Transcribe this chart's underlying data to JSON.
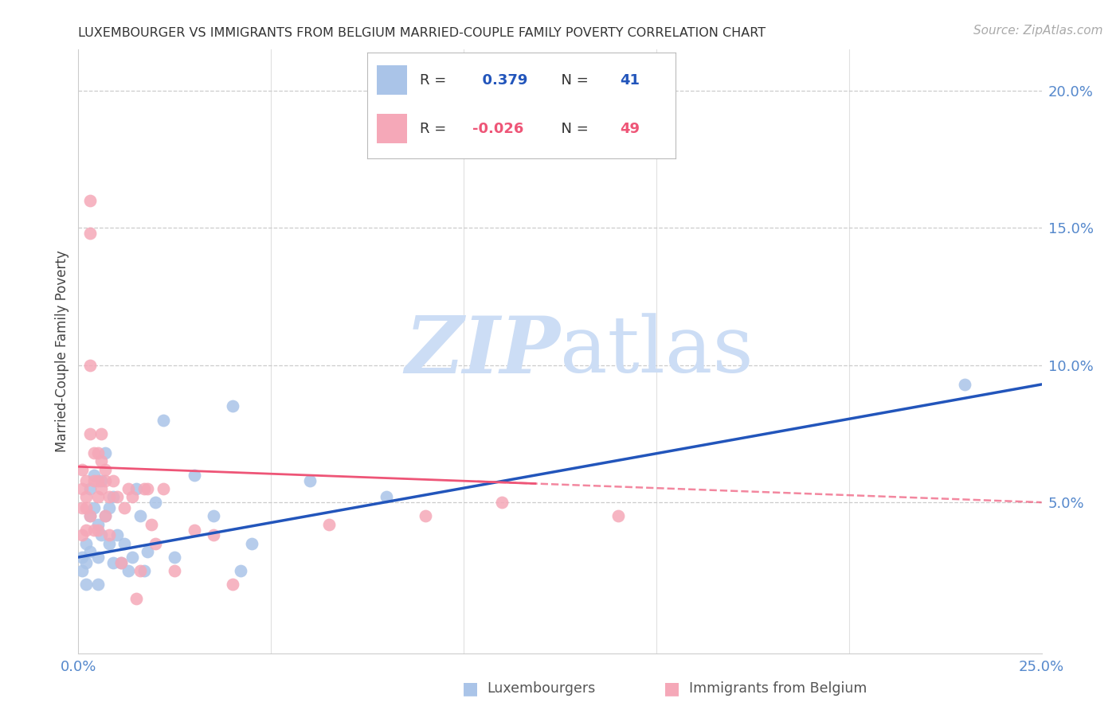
{
  "title": "LUXEMBOURGER VS IMMIGRANTS FROM BELGIUM MARRIED-COUPLE FAMILY POVERTY CORRELATION CHART",
  "source": "Source: ZipAtlas.com",
  "ylabel": "Married-Couple Family Poverty",
  "xlim": [
    0.0,
    0.25
  ],
  "ylim": [
    -0.005,
    0.215
  ],
  "y_ticks_right": [
    0.05,
    0.1,
    0.15,
    0.2
  ],
  "y_tick_labels_right": [
    "5.0%",
    "10.0%",
    "15.0%",
    "20.0%"
  ],
  "legend_R1": " 0.379",
  "legend_N1": "41",
  "legend_R2": "-0.026",
  "legend_N2": "49",
  "legend_label1": "Luxembourgers",
  "legend_label2": "Immigrants from Belgium",
  "blue_color": "#aac4e8",
  "pink_color": "#f5a8b8",
  "blue_line_color": "#2255bb",
  "pink_line_color": "#ee5577",
  "watermark_color": "#ccddf5",
  "blue_scatter_x": [
    0.001,
    0.001,
    0.002,
    0.002,
    0.002,
    0.003,
    0.003,
    0.003,
    0.004,
    0.004,
    0.005,
    0.005,
    0.005,
    0.006,
    0.006,
    0.007,
    0.007,
    0.008,
    0.008,
    0.009,
    0.009,
    0.01,
    0.011,
    0.012,
    0.013,
    0.014,
    0.015,
    0.016,
    0.017,
    0.018,
    0.02,
    0.022,
    0.025,
    0.03,
    0.035,
    0.04,
    0.042,
    0.045,
    0.06,
    0.08,
    0.23
  ],
  "blue_scatter_y": [
    0.03,
    0.025,
    0.035,
    0.028,
    0.02,
    0.055,
    0.045,
    0.032,
    0.06,
    0.048,
    0.042,
    0.03,
    0.02,
    0.058,
    0.038,
    0.068,
    0.045,
    0.048,
    0.035,
    0.052,
    0.028,
    0.038,
    0.028,
    0.035,
    0.025,
    0.03,
    0.055,
    0.045,
    0.025,
    0.032,
    0.05,
    0.08,
    0.03,
    0.06,
    0.045,
    0.085,
    0.025,
    0.035,
    0.058,
    0.052,
    0.093
  ],
  "pink_scatter_x": [
    0.001,
    0.001,
    0.001,
    0.001,
    0.002,
    0.002,
    0.002,
    0.002,
    0.003,
    0.003,
    0.003,
    0.003,
    0.003,
    0.004,
    0.004,
    0.004,
    0.005,
    0.005,
    0.005,
    0.005,
    0.006,
    0.006,
    0.006,
    0.007,
    0.007,
    0.007,
    0.008,
    0.008,
    0.009,
    0.01,
    0.011,
    0.012,
    0.013,
    0.014,
    0.015,
    0.016,
    0.017,
    0.018,
    0.019,
    0.02,
    0.022,
    0.025,
    0.03,
    0.035,
    0.04,
    0.065,
    0.09,
    0.11,
    0.14
  ],
  "pink_scatter_y": [
    0.062,
    0.055,
    0.048,
    0.038,
    0.058,
    0.052,
    0.048,
    0.04,
    0.16,
    0.148,
    0.1,
    0.075,
    0.045,
    0.068,
    0.058,
    0.04,
    0.068,
    0.058,
    0.052,
    0.04,
    0.075,
    0.065,
    0.055,
    0.062,
    0.058,
    0.045,
    0.052,
    0.038,
    0.058,
    0.052,
    0.028,
    0.048,
    0.055,
    0.052,
    0.015,
    0.025,
    0.055,
    0.055,
    0.042,
    0.035,
    0.055,
    0.025,
    0.04,
    0.038,
    0.02,
    0.042,
    0.045,
    0.05,
    0.045
  ]
}
